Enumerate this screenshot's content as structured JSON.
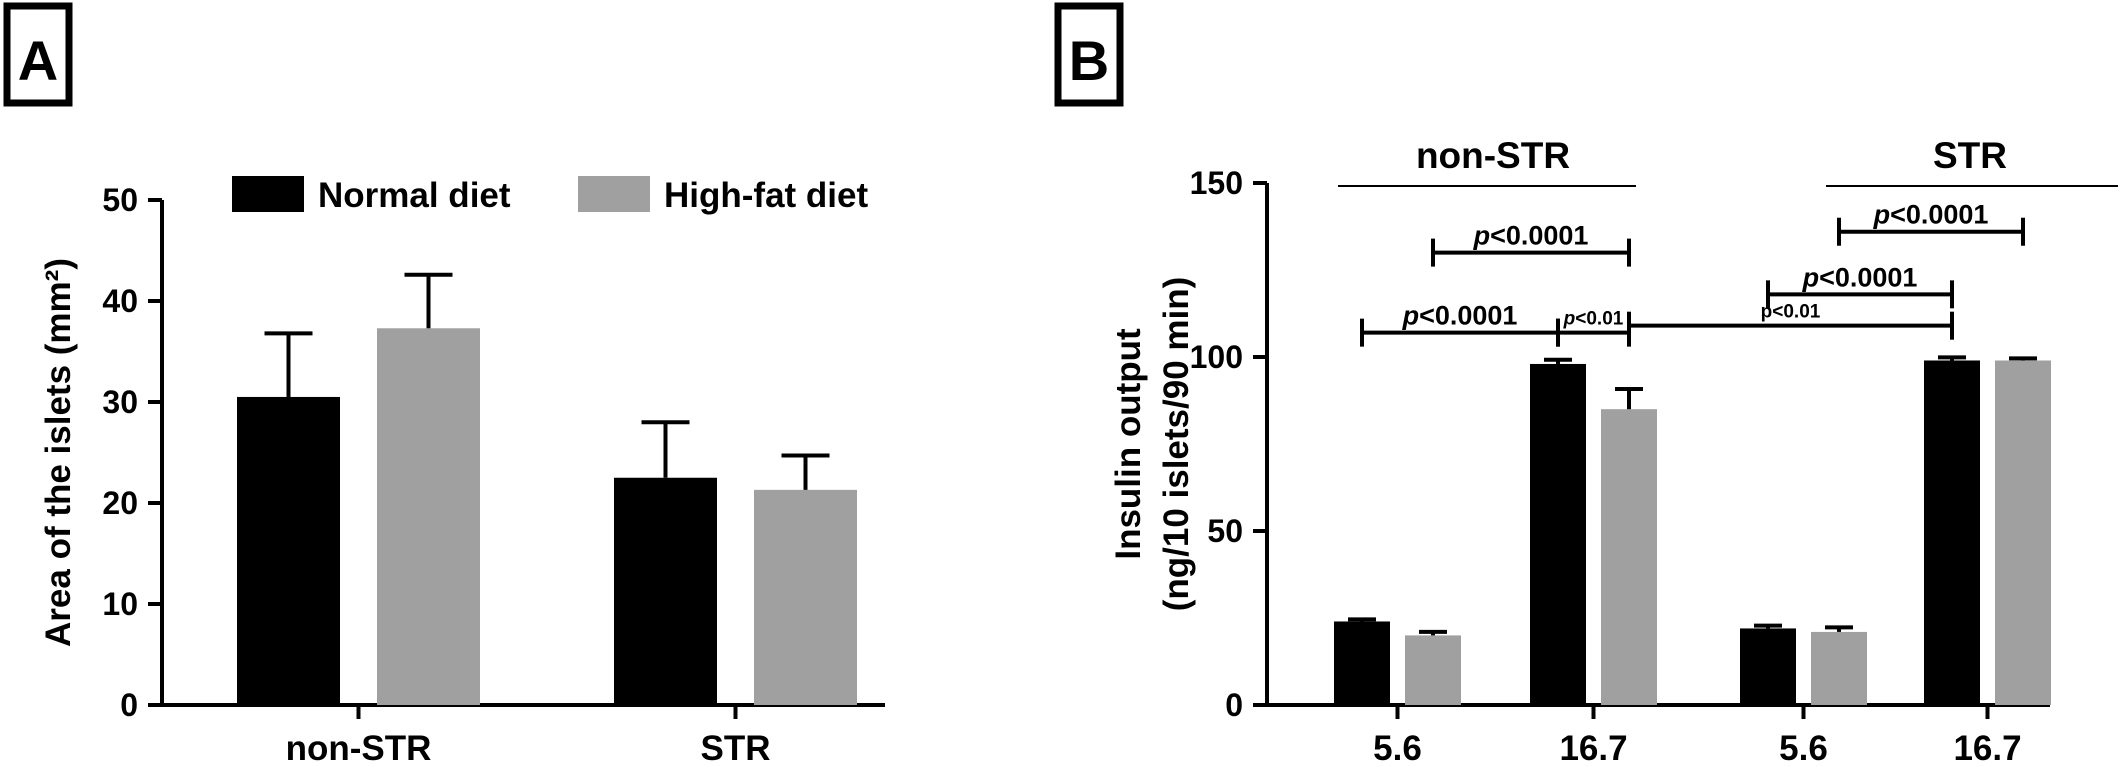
{
  "panels": {
    "a": {
      "label": "A"
    },
    "b": {
      "label": "B"
    }
  },
  "colors": {
    "normal": "#000000",
    "high_fat": "#a0a0a0",
    "axis": "#000000"
  },
  "chart_data": [
    {
      "type": "bar",
      "panel": "A",
      "title": "",
      "xlabel": "",
      "ylabel": "Area of the islets (mm²)",
      "ylim": [
        0,
        50
      ],
      "yticks": [
        0,
        10,
        20,
        30,
        40,
        50
      ],
      "categories": [
        "non-STR",
        "STR"
      ],
      "legend": {
        "position": "top",
        "entries": [
          "Normal diet",
          "High-fat diet"
        ]
      },
      "series": [
        {
          "name": "Normal diet",
          "values": [
            30.5,
            22.5
          ],
          "errors": [
            6.3,
            5.5
          ]
        },
        {
          "name": "High-fat diet",
          "values": [
            37.3,
            21.3
          ],
          "errors": [
            5.3,
            3.4
          ]
        }
      ]
    },
    {
      "type": "bar",
      "panel": "B",
      "title": "",
      "xlabel": "",
      "ylabel_line1": "Insulin output",
      "ylabel_line2": "(ng/10 islets/90 min)",
      "ylim": [
        0,
        150
      ],
      "yticks": [
        0,
        50,
        100,
        150
      ],
      "categories": [
        "5.6",
        "16.7",
        "5.6",
        "16.7"
      ],
      "group_labels": [
        "non-STR",
        "STR"
      ],
      "series": [
        {
          "name": "Normal diet",
          "values": [
            24,
            98,
            22,
            99
          ],
          "errors": [
            0.6,
            1.2,
            0.8,
            0.9
          ]
        },
        {
          "name": "High-fat diet",
          "values": [
            20,
            85,
            21,
            99
          ],
          "errors": [
            1.0,
            5.8,
            1.3,
            0.6
          ]
        }
      ],
      "comparisons": [
        {
          "label_italic": "p",
          "label_rest": "<0.0001",
          "small": false,
          "from": [
            0,
            0
          ],
          "to": [
            1,
            0
          ],
          "y": 107
        },
        {
          "label_italic": "p",
          "label_rest": "<0.0001",
          "small": false,
          "from": [
            0,
            1
          ],
          "to": [
            1,
            1
          ],
          "y": 130
        },
        {
          "label_italic": "p",
          "label_rest": "<0.01",
          "small": true,
          "from": [
            1,
            0
          ],
          "to": [
            1,
            1
          ],
          "y": 107
        },
        {
          "label_italic": "",
          "label_rest": "p<0.01",
          "small": true,
          "from": [
            1,
            1
          ],
          "to": [
            3,
            0
          ],
          "y": 109
        },
        {
          "label_italic": "p",
          "label_rest": "<0.0001",
          "small": false,
          "from": [
            2,
            0
          ],
          "to": [
            3,
            0
          ],
          "y": 118
        },
        {
          "label_italic": "p",
          "label_rest": "<0.0001",
          "small": false,
          "from": [
            2,
            1
          ],
          "to": [
            3,
            1
          ],
          "y": 136
        }
      ]
    }
  ]
}
